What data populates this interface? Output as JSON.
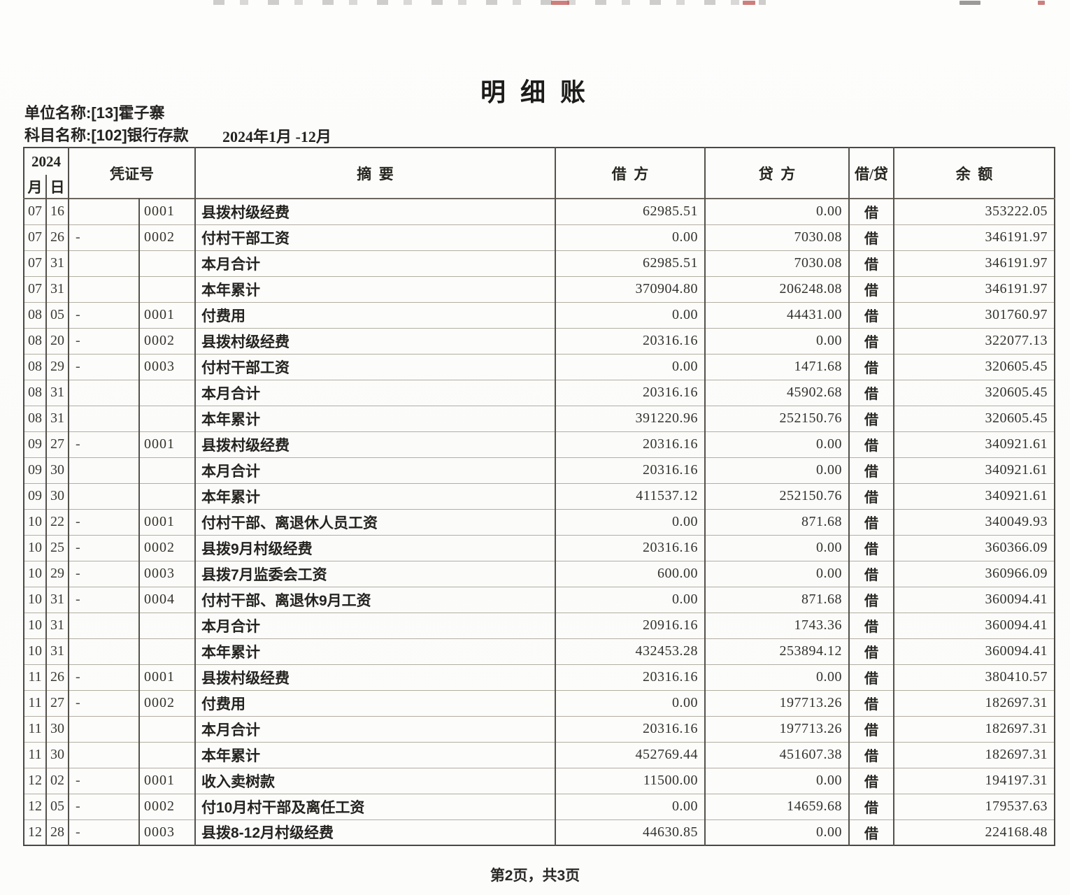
{
  "page": {
    "title": "明 细 账",
    "unit_label": "单位名称:[13]霍子寨",
    "account_label": "科目名称:[102]银行存款",
    "period": "2024年1月 -12月",
    "footer": "第2页，共3页"
  },
  "table": {
    "year": "2024",
    "headers": {
      "month": "月",
      "day": "日",
      "voucher": "凭证号",
      "summary": "摘  要",
      "debit": "借  方",
      "credit": "贷  方",
      "direction": "借/贷",
      "balance": "余  额"
    },
    "rows": [
      {
        "month": "07",
        "day": "16",
        "dash": "",
        "voucher": "0001",
        "summary": "县拨村级经费",
        "debit": "62985.51",
        "credit": "0.00",
        "direction": "借",
        "balance": "353222.05"
      },
      {
        "month": "07",
        "day": "26",
        "dash": "-",
        "voucher": "0002",
        "summary": "付村干部工资",
        "debit": "0.00",
        "credit": "7030.08",
        "direction": "借",
        "balance": "346191.97"
      },
      {
        "month": "07",
        "day": "31",
        "dash": "",
        "voucher": "",
        "summary": "本月合计",
        "debit": "62985.51",
        "credit": "7030.08",
        "direction": "借",
        "balance": "346191.97"
      },
      {
        "month": "07",
        "day": "31",
        "dash": "",
        "voucher": "",
        "summary": "本年累计",
        "debit": "370904.80",
        "credit": "206248.08",
        "direction": "借",
        "balance": "346191.97"
      },
      {
        "month": "08",
        "day": "05",
        "dash": "-",
        "voucher": "0001",
        "summary": "付费用",
        "debit": "0.00",
        "credit": "44431.00",
        "direction": "借",
        "balance": "301760.97"
      },
      {
        "month": "08",
        "day": "20",
        "dash": "-",
        "voucher": "0002",
        "summary": "县拨村级经费",
        "debit": "20316.16",
        "credit": "0.00",
        "direction": "借",
        "balance": "322077.13"
      },
      {
        "month": "08",
        "day": "29",
        "dash": "-",
        "voucher": "0003",
        "summary": "付村干部工资",
        "debit": "0.00",
        "credit": "1471.68",
        "direction": "借",
        "balance": "320605.45"
      },
      {
        "month": "08",
        "day": "31",
        "dash": "",
        "voucher": "",
        "summary": "本月合计",
        "debit": "20316.16",
        "credit": "45902.68",
        "direction": "借",
        "balance": "320605.45"
      },
      {
        "month": "08",
        "day": "31",
        "dash": "",
        "voucher": "",
        "summary": "本年累计",
        "debit": "391220.96",
        "credit": "252150.76",
        "direction": "借",
        "balance": "320605.45"
      },
      {
        "month": "09",
        "day": "27",
        "dash": "-",
        "voucher": "0001",
        "summary": "县拨村级经费",
        "debit": "20316.16",
        "credit": "0.00",
        "direction": "借",
        "balance": "340921.61"
      },
      {
        "month": "09",
        "day": "30",
        "dash": "",
        "voucher": "",
        "summary": "本月合计",
        "debit": "20316.16",
        "credit": "0.00",
        "direction": "借",
        "balance": "340921.61"
      },
      {
        "month": "09",
        "day": "30",
        "dash": "",
        "voucher": "",
        "summary": "本年累计",
        "debit": "411537.12",
        "credit": "252150.76",
        "direction": "借",
        "balance": "340921.61"
      },
      {
        "month": "10",
        "day": "22",
        "dash": "-",
        "voucher": "0001",
        "summary": "付村干部、离退休人员工资",
        "debit": "0.00",
        "credit": "871.68",
        "direction": "借",
        "balance": "340049.93"
      },
      {
        "month": "10",
        "day": "25",
        "dash": "-",
        "voucher": "0002",
        "summary": "县拨9月村级经费",
        "debit": "20316.16",
        "credit": "0.00",
        "direction": "借",
        "balance": "360366.09"
      },
      {
        "month": "10",
        "day": "29",
        "dash": "-",
        "voucher": "0003",
        "summary": "县拨7月监委会工资",
        "debit": "600.00",
        "credit": "0.00",
        "direction": "借",
        "balance": "360966.09"
      },
      {
        "month": "10",
        "day": "31",
        "dash": "-",
        "voucher": "0004",
        "summary": "付村干部、离退休9月工资",
        "debit": "0.00",
        "credit": "871.68",
        "direction": "借",
        "balance": "360094.41"
      },
      {
        "month": "10",
        "day": "31",
        "dash": "",
        "voucher": "",
        "summary": "本月合计",
        "debit": "20916.16",
        "credit": "1743.36",
        "direction": "借",
        "balance": "360094.41"
      },
      {
        "month": "10",
        "day": "31",
        "dash": "",
        "voucher": "",
        "summary": "本年累计",
        "debit": "432453.28",
        "credit": "253894.12",
        "direction": "借",
        "balance": "360094.41"
      },
      {
        "month": "11",
        "day": "26",
        "dash": "-",
        "voucher": "0001",
        "summary": "县拨村级经费",
        "debit": "20316.16",
        "credit": "0.00",
        "direction": "借",
        "balance": "380410.57"
      },
      {
        "month": "11",
        "day": "27",
        "dash": "-",
        "voucher": "0002",
        "summary": "付费用",
        "debit": "0.00",
        "credit": "197713.26",
        "direction": "借",
        "balance": "182697.31"
      },
      {
        "month": "11",
        "day": "30",
        "dash": "",
        "voucher": "",
        "summary": "本月合计",
        "debit": "20316.16",
        "credit": "197713.26",
        "direction": "借",
        "balance": "182697.31"
      },
      {
        "month": "11",
        "day": "30",
        "dash": "",
        "voucher": "",
        "summary": "本年累计",
        "debit": "452769.44",
        "credit": "451607.38",
        "direction": "借",
        "balance": "182697.31"
      },
      {
        "month": "12",
        "day": "02",
        "dash": "-",
        "voucher": "0001",
        "summary": "收入卖树款",
        "debit": "11500.00",
        "credit": "0.00",
        "direction": "借",
        "balance": "194197.31"
      },
      {
        "month": "12",
        "day": "05",
        "dash": "-",
        "voucher": "0002",
        "summary": "付10月村干部及离任工资",
        "debit": "0.00",
        "credit": "14659.68",
        "direction": "借",
        "balance": "179537.63"
      },
      {
        "month": "12",
        "day": "28",
        "dash": "-",
        "voucher": "0003",
        "summary": "县拨8-12月村级经费",
        "debit": "44630.85",
        "credit": "0.00",
        "direction": "借",
        "balance": "224168.48"
      }
    ]
  }
}
